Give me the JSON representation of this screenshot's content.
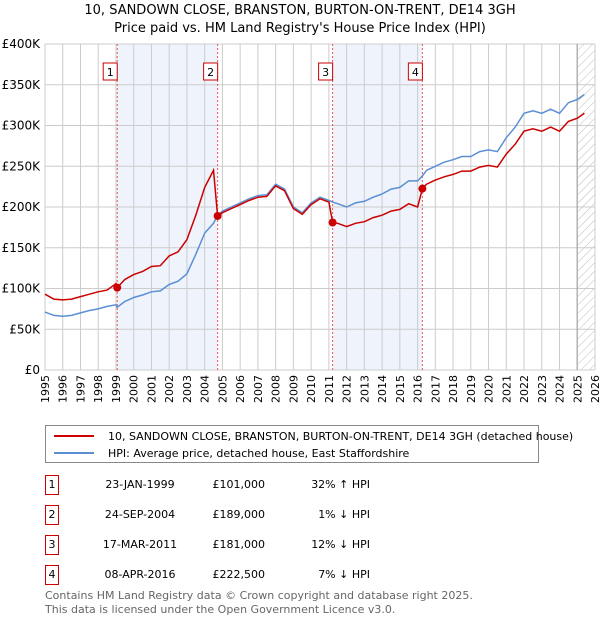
{
  "chart_data": {
    "type": "line",
    "title": "10, SANDOWN CLOSE, BRANSTON, BURTON-ON-TRENT, DE14 3GH",
    "subtitle": "Price paid vs. HM Land Registry's House Price Index (HPI)",
    "xlim": [
      1995,
      2026
    ],
    "ylim": [
      0,
      400000
    ],
    "y_ticks": [
      {
        "v": 0,
        "label": "£0"
      },
      {
        "v": 50000,
        "label": "£50K"
      },
      {
        "v": 100000,
        "label": "£100K"
      },
      {
        "v": 150000,
        "label": "£150K"
      },
      {
        "v": 200000,
        "label": "£200K"
      },
      {
        "v": 250000,
        "label": "£250K"
      },
      {
        "v": 300000,
        "label": "£300K"
      },
      {
        "v": 350000,
        "label": "£350K"
      },
      {
        "v": 400000,
        "label": "£400K"
      }
    ],
    "x_ticks": [
      "1995",
      "1996",
      "1997",
      "1998",
      "1999",
      "2000",
      "2001",
      "2002",
      "2003",
      "2004",
      "2005",
      "2006",
      "2007",
      "2008",
      "2009",
      "2010",
      "2011",
      "2012",
      "2013",
      "2014",
      "2015",
      "2016",
      "2017",
      "2018",
      "2019",
      "2020",
      "2021",
      "2022",
      "2023",
      "2024",
      "2025",
      "2026"
    ],
    "grid": true,
    "x": [
      1995,
      1995.5,
      1996,
      1996.5,
      1997,
      1997.5,
      1998,
      1998.5,
      1999,
      1999.07,
      1999.5,
      2000,
      2000.5,
      2001,
      2001.5,
      2002,
      2002.5,
      2003,
      2003.5,
      2004,
      2004.5,
      2004.73,
      2005,
      2005.5,
      2006,
      2006.5,
      2007,
      2007.5,
      2008,
      2008.5,
      2009,
      2009.5,
      2010,
      2010.5,
      2011,
      2011.21,
      2011.5,
      2012,
      2012.5,
      2013,
      2013.5,
      2014,
      2014.5,
      2015,
      2015.5,
      2016,
      2016.27,
      2016.5,
      2017,
      2017.5,
      2018,
      2018.5,
      2019,
      2019.5,
      2020,
      2020.5,
      2021,
      2021.5,
      2022,
      2022.5,
      2023,
      2023.5,
      2024,
      2024.5,
      2025,
      2025.4
    ],
    "series": [
      {
        "name": "10, SANDOWN CLOSE, BRANSTON, BURTON-ON-TRENT, DE14 3GH (detached house)",
        "color": "#cc0000",
        "values": [
          93000,
          87000,
          86000,
          87000,
          90000,
          93000,
          96000,
          98000,
          106000,
          101000,
          111000,
          117000,
          121000,
          127000,
          128000,
          140000,
          145000,
          160000,
          190000,
          224000,
          245000,
          189000,
          193000,
          198000,
          203000,
          208000,
          212000,
          213000,
          226000,
          220000,
          198000,
          191000,
          203000,
          210000,
          206000,
          181000,
          180000,
          176000,
          180000,
          182000,
          187000,
          190000,
          195000,
          197000,
          204000,
          200000,
          222500,
          228000,
          233000,
          237000,
          240000,
          244000,
          244000,
          249000,
          251000,
          249000,
          265000,
          277000,
          293000,
          296000,
          293000,
          298000,
          293000,
          305000,
          309000,
          315000
        ]
      },
      {
        "name": "HPI: Average price, detached house, East Staffordshire",
        "color": "#5b8fd4",
        "values": [
          71000,
          67000,
          66000,
          67000,
          70000,
          73000,
          75000,
          78000,
          80000,
          77000,
          84000,
          89000,
          92000,
          96000,
          97000,
          105000,
          109000,
          118000,
          142000,
          168000,
          180000,
          190000,
          195000,
          200000,
          205000,
          210000,
          214000,
          215000,
          228000,
          222000,
          200000,
          193000,
          205000,
          212000,
          208000,
          206000,
          204000,
          200000,
          205000,
          207000,
          212000,
          216000,
          222000,
          224000,
          232000,
          232000,
          238000,
          245000,
          250000,
          255000,
          258000,
          262000,
          262000,
          268000,
          270000,
          268000,
          285000,
          298000,
          315000,
          318000,
          315000,
          320000,
          315000,
          328000,
          332000,
          338000
        ]
      }
    ],
    "shaded_periods": [
      [
        1999.07,
        2004.73
      ],
      [
        2011.21,
        2016.27
      ]
    ],
    "forecast_start": 2025.05,
    "legend_position": "below",
    "sales": [
      {
        "id": "1",
        "x": 1999.07,
        "date": "23-JAN-1999",
        "price_value": 101000,
        "price": "£101,000",
        "hpi": "32% ↑ HPI"
      },
      {
        "id": "2",
        "x": 2004.73,
        "date": "24-SEP-2004",
        "price_value": 189000,
        "price": "£189,000",
        "hpi": "1% ↓ HPI"
      },
      {
        "id": "3",
        "x": 2011.21,
        "date": "17-MAR-2011",
        "price_value": 181000,
        "price": "£181,000",
        "hpi": "12% ↓ HPI"
      },
      {
        "id": "4",
        "x": 2016.27,
        "date": "08-APR-2016",
        "price_value": 222500,
        "price": "£222,500",
        "hpi": "7% ↓ HPI"
      }
    ]
  },
  "footer": {
    "line1": "Contains HM Land Registry data © Crown copyright and database right 2025.",
    "line2": "This data is licensed under the Open Government Licence v3.0."
  }
}
